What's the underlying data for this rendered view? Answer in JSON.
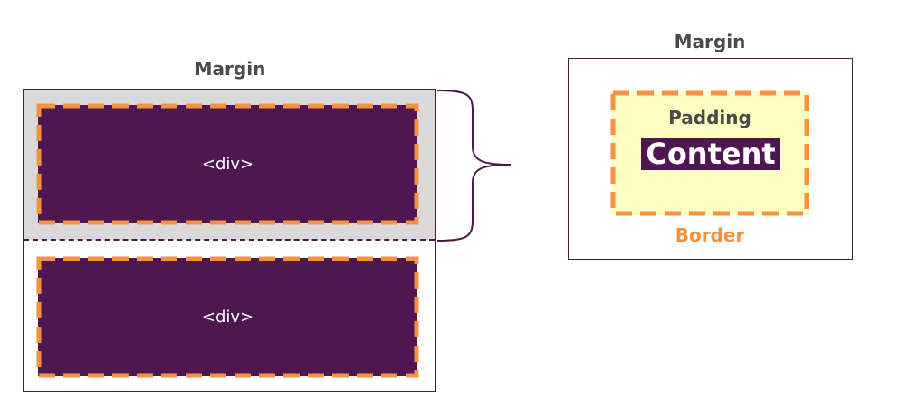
{
  "left_diagram": {
    "margin_label": "Margin",
    "divs": [
      {
        "label": "<div>"
      },
      {
        "label": "<div>"
      }
    ]
  },
  "right_diagram": {
    "margin_label": "Margin",
    "padding_label": "Padding",
    "content_label": "Content",
    "border_label": "Border"
  },
  "colors": {
    "purple": "#4f1750",
    "orange_border": "#f5923e",
    "margin_gray": "#d9d9d9",
    "padding_yellow": "#fdfcc3",
    "label_gray": "#4a4a4a"
  }
}
